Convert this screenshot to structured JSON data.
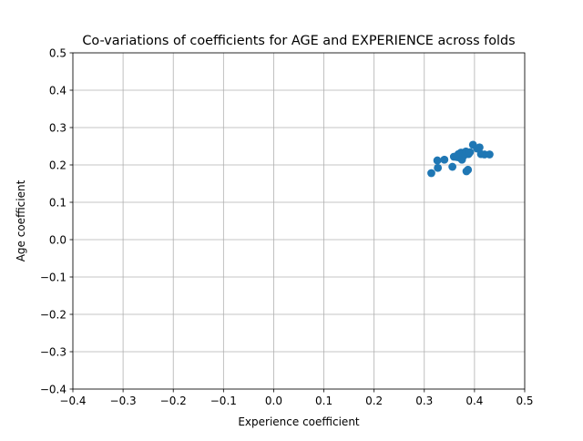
{
  "chart_data": {
    "type": "scatter",
    "title": "Co-variations of coefficients for AGE and EXPERIENCE across folds",
    "xlabel": "Experience coefficient",
    "ylabel": "Age coefficient",
    "xlim": [
      -0.4,
      0.5
    ],
    "ylim": [
      -0.4,
      0.5
    ],
    "x_ticks": [
      -0.4,
      -0.3,
      -0.2,
      -0.1,
      0.0,
      0.1,
      0.2,
      0.3,
      0.4,
      0.5
    ],
    "y_ticks": [
      -0.4,
      -0.3,
      -0.2,
      -0.1,
      0.0,
      0.1,
      0.2,
      0.3,
      0.4,
      0.5
    ],
    "x_tick_labels": [
      "−0.4",
      "−0.3",
      "−0.2",
      "−0.1",
      "0.0",
      "0.1",
      "0.2",
      "0.3",
      "0.4",
      "0.5"
    ],
    "y_tick_labels": [
      "−0.4",
      "−0.3",
      "−0.2",
      "−0.1",
      "0.0",
      "0.1",
      "0.2",
      "0.3",
      "0.4",
      "0.5"
    ],
    "grid": true,
    "legend": "none",
    "point_color": "#1f77b4",
    "points": [
      {
        "x": 0.314,
        "y": 0.178
      },
      {
        "x": 0.326,
        "y": 0.212
      },
      {
        "x": 0.327,
        "y": 0.192
      },
      {
        "x": 0.34,
        "y": 0.214
      },
      {
        "x": 0.356,
        "y": 0.195
      },
      {
        "x": 0.359,
        "y": 0.222
      },
      {
        "x": 0.365,
        "y": 0.221
      },
      {
        "x": 0.368,
        "y": 0.229
      },
      {
        "x": 0.371,
        "y": 0.219
      },
      {
        "x": 0.373,
        "y": 0.233
      },
      {
        "x": 0.375,
        "y": 0.214
      },
      {
        "x": 0.378,
        "y": 0.224
      },
      {
        "x": 0.381,
        "y": 0.228
      },
      {
        "x": 0.383,
        "y": 0.236
      },
      {
        "x": 0.384,
        "y": 0.183
      },
      {
        "x": 0.387,
        "y": 0.187
      },
      {
        "x": 0.388,
        "y": 0.229
      },
      {
        "x": 0.391,
        "y": 0.234
      },
      {
        "x": 0.397,
        "y": 0.254
      },
      {
        "x": 0.405,
        "y": 0.244
      },
      {
        "x": 0.41,
        "y": 0.247
      },
      {
        "x": 0.413,
        "y": 0.229
      },
      {
        "x": 0.42,
        "y": 0.228
      },
      {
        "x": 0.43,
        "y": 0.228
      }
    ]
  }
}
